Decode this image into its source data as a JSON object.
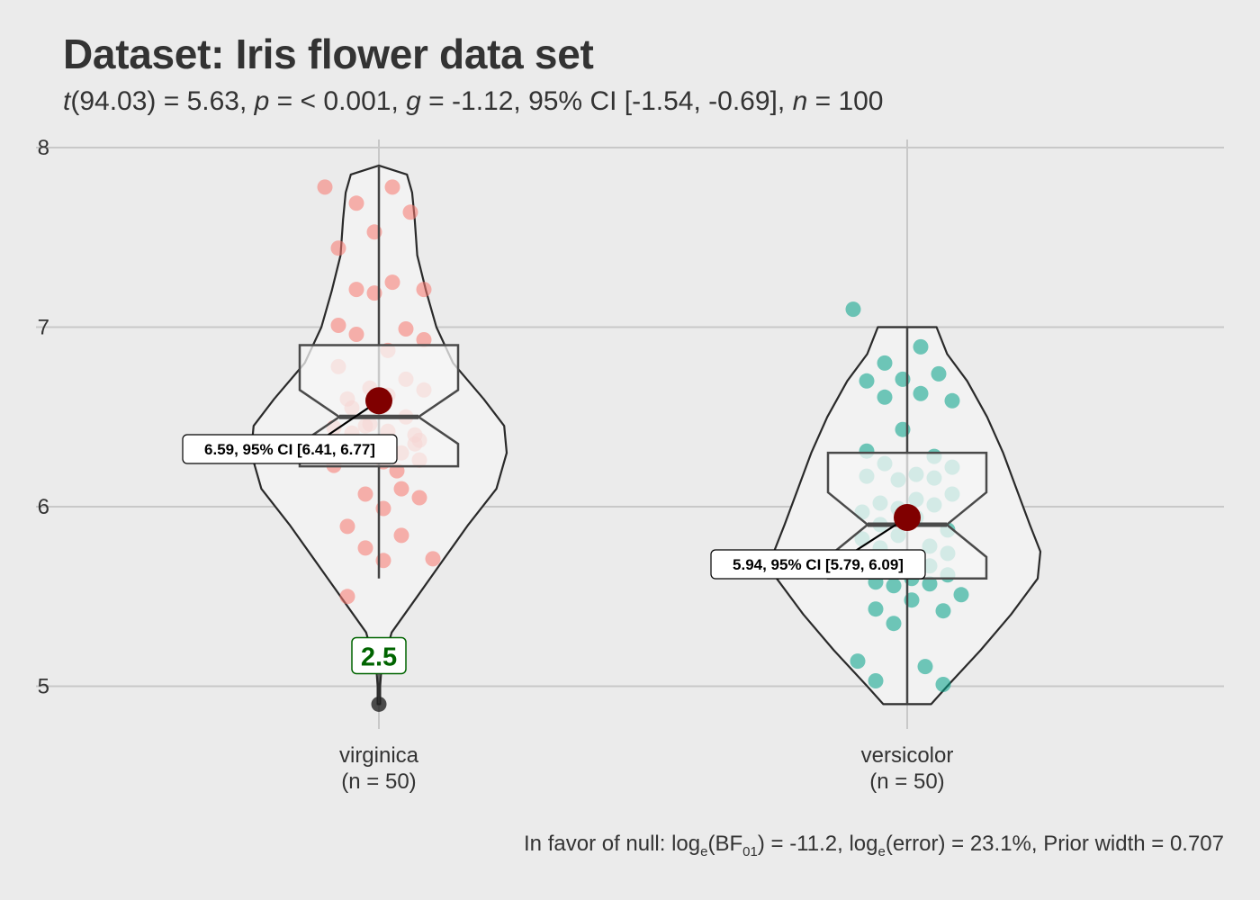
{
  "title": "Dataset: Iris flower data set",
  "subtitle": {
    "t_label": "t",
    "t_args": "(94.03) = 5.63, ",
    "p_label": "p",
    "p_text": " = < 0.001, ",
    "g_label": "g",
    "g_text": " = -1.12, 95% CI [-1.54, -0.69], ",
    "n_label": "n",
    "n_text": " = 100"
  },
  "caption": {
    "prefix": "In favor of null: log",
    "sub1": "e",
    "bf": "(BF",
    "sub2": "01",
    "middle": ") = -11.2, log",
    "sub3": "e",
    "suffix": "(error) = 23.1%, Prior width = 0.707"
  },
  "colors": {
    "background": "#ebebeb",
    "grid": "#c8c8c8",
    "virginica": "#f8766d",
    "versicolor": "#00a087",
    "mean": "#800000",
    "outlier_label": "#006400"
  },
  "chart_data": {
    "type": "violin",
    "ylim": [
      4.8,
      8.05
    ],
    "yticks": [
      "5",
      "6",
      "7",
      "8"
    ],
    "grid": true,
    "groups": [
      {
        "name": "virginica",
        "tick_label": "virginica",
        "n_label": "(n = 50)",
        "min": 4.9,
        "max": 7.9,
        "q1": 6.225,
        "median": 6.5,
        "q3": 6.9,
        "whisker_low": 5.6,
        "whisker_high": 7.9,
        "mean": 6.59,
        "mean_label": "6.59, 95% CI [6.41, 6.77]",
        "outlier": 4.9,
        "outlier_label": "2.5",
        "points": [
          7.78,
          7.78,
          7.69,
          7.64,
          7.53,
          7.44,
          7.25,
          7.21,
          7.21,
          7.19,
          7.01,
          6.99,
          6.96,
          6.93,
          6.87,
          6.78,
          6.71,
          6.66,
          6.65,
          6.62,
          6.55,
          6.5,
          6.46,
          6.44,
          6.42,
          6.41,
          6.37,
          6.35,
          6.33,
          6.3,
          6.28,
          6.26,
          6.25,
          6.23,
          6.1,
          6.07,
          6.05,
          5.99,
          5.89,
          5.84,
          5.77,
          5.71,
          5.7,
          5.5,
          6.4,
          6.45,
          6.3,
          6.2,
          6.6,
          6.35
        ]
      },
      {
        "name": "versicolor",
        "tick_label": "versicolor",
        "n_label": "(n = 50)",
        "min": 4.9,
        "max": 7.0,
        "q1": 5.6,
        "median": 5.9,
        "q3": 6.3,
        "whisker_low": 4.9,
        "whisker_high": 7.0,
        "mean": 5.94,
        "mean_label": "5.94, 95% CI [5.79, 6.09]",
        "points": [
          7.1,
          6.89,
          6.8,
          6.74,
          6.71,
          6.7,
          6.63,
          6.61,
          6.59,
          6.43,
          6.31,
          6.28,
          6.24,
          6.22,
          6.18,
          6.17,
          6.16,
          6.15,
          6.07,
          6.04,
          6.02,
          6.01,
          5.99,
          5.97,
          5.94,
          5.9,
          5.87,
          5.84,
          5.82,
          5.78,
          5.77,
          5.74,
          5.72,
          5.71,
          5.67,
          5.66,
          5.62,
          5.6,
          5.58,
          5.57,
          5.56,
          5.51,
          5.48,
          5.43,
          5.42,
          5.35,
          5.14,
          5.11,
          5.03,
          5.01
        ]
      }
    ]
  }
}
